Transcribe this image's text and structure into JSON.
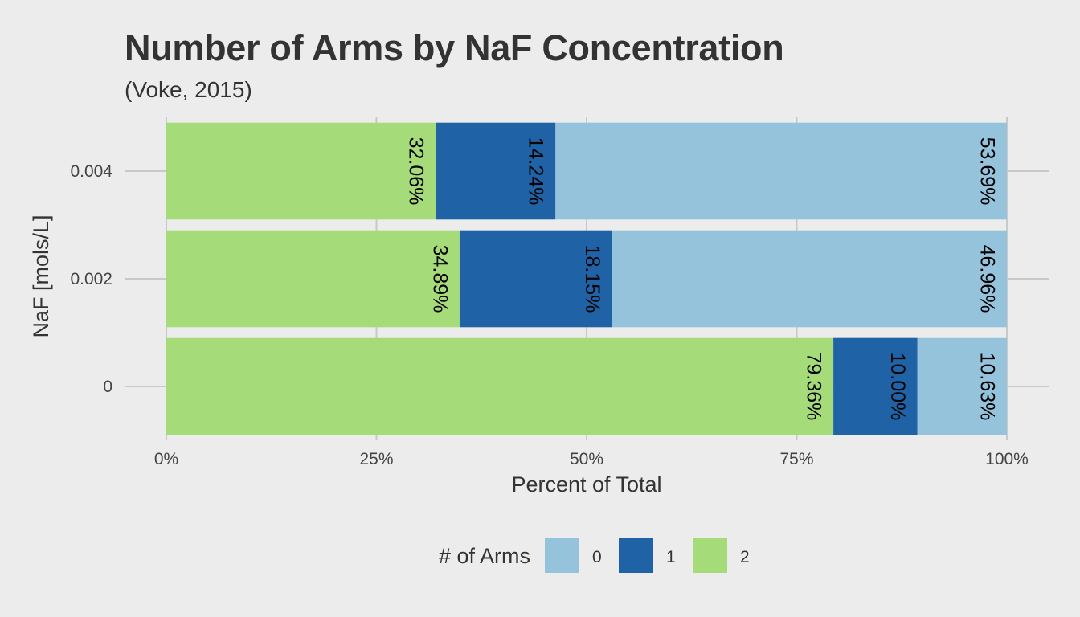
{
  "chart_data": {
    "type": "bar",
    "orientation": "horizontal",
    "stacked": true,
    "title": "Number of Arms by NaF Concentration",
    "subtitle": "(Voke, 2015)",
    "xlabel": "Percent of Total",
    "ylabel": "NaF [mols/L]",
    "xlim": [
      0,
      100
    ],
    "x_ticks": [
      "0%",
      "25%",
      "50%",
      "75%",
      "100%"
    ],
    "x_tick_values": [
      0,
      25,
      50,
      75,
      100
    ],
    "categories": [
      "0",
      "0.002",
      "0.004"
    ],
    "series": [
      {
        "name": "2",
        "color": "#a6db7a",
        "values": [
          79.36,
          34.89,
          32.06
        ],
        "labels": [
          "79.36%",
          "34.89%",
          "32.06%"
        ]
      },
      {
        "name": "1",
        "color": "#1f63a6",
        "values": [
          10.0,
          18.15,
          14.24
        ],
        "labels": [
          "10.00%",
          "18.15%",
          "14.24%"
        ]
      },
      {
        "name": "0",
        "color": "#96c3dc",
        "values": [
          10.63,
          46.96,
          53.69
        ],
        "labels": [
          "10.63%",
          "46.96%",
          "53.69%"
        ]
      }
    ],
    "legend": {
      "title": "# of Arms",
      "position": "bottom",
      "items": [
        {
          "label": "0",
          "color": "#96c3dc"
        },
        {
          "label": "1",
          "color": "#1f63a6"
        },
        {
          "label": "2",
          "color": "#a6db7a"
        }
      ]
    },
    "grid": true
  }
}
